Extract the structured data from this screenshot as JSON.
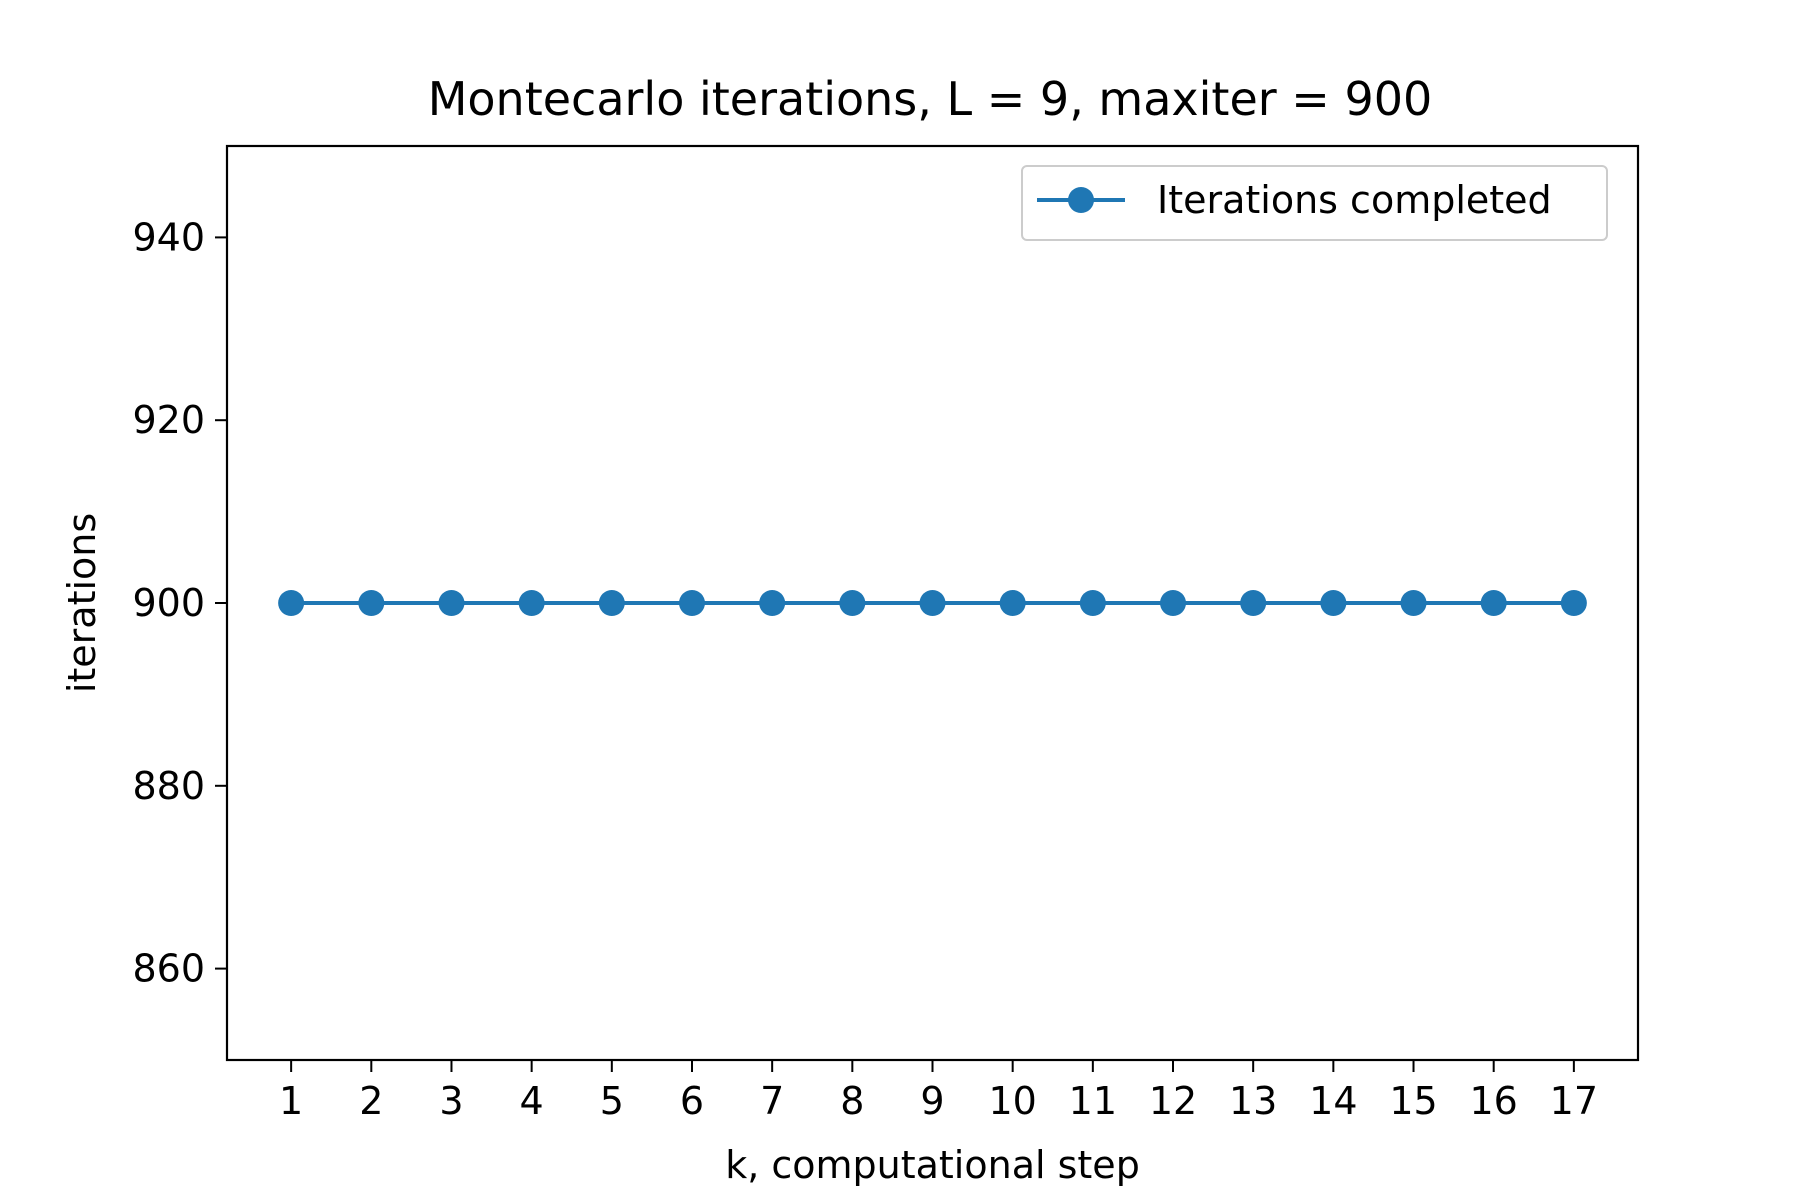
{
  "chart_data": {
    "type": "line",
    "title": "Montecarlo iterations, L = 9, maxiter = 900",
    "xlabel": "k, computational step",
    "ylabel": "iterations",
    "x": [
      1,
      2,
      3,
      4,
      5,
      6,
      7,
      8,
      9,
      10,
      11,
      12,
      13,
      14,
      15,
      16,
      17
    ],
    "series": [
      {
        "name": "Iterations completed",
        "values": [
          900,
          900,
          900,
          900,
          900,
          900,
          900,
          900,
          900,
          900,
          900,
          900,
          900,
          900,
          900,
          900,
          900
        ],
        "color": "#1f77b4",
        "marker": "circle"
      }
    ],
    "xlim": [
      0.2,
      17.8
    ],
    "ylim": [
      850,
      950
    ],
    "xticks": [
      "1",
      "2",
      "3",
      "4",
      "5",
      "6",
      "7",
      "8",
      "9",
      "10",
      "11",
      "12",
      "13",
      "14",
      "15",
      "16",
      "17"
    ],
    "yticks": [
      "860",
      "880",
      "900",
      "920",
      "940"
    ],
    "ytick_values": [
      860,
      880,
      900,
      920,
      940
    ],
    "grid": false,
    "legend_position": "top-right"
  }
}
